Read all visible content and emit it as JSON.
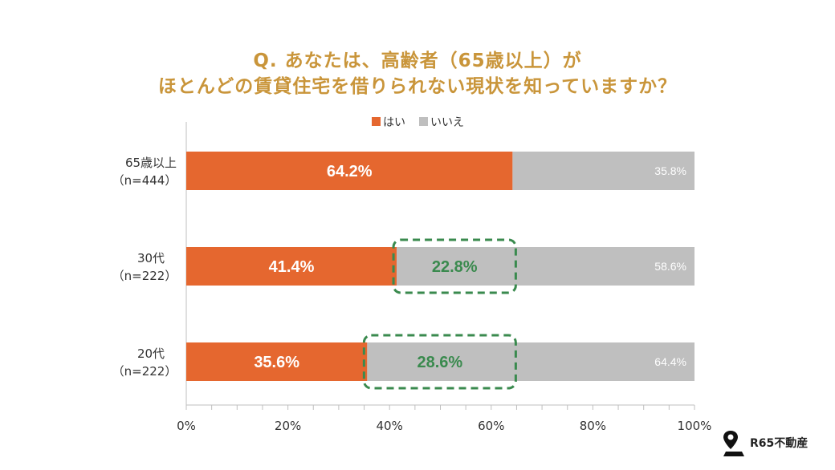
{
  "title": [
    "Q. あなたは、高齢者（65歳以上）が",
    "ほとんどの賃貸住宅を借りられない現状を知っていますか？"
  ],
  "brand": {
    "name": "R65不動産",
    "icon": "map-pin-icon"
  },
  "colors": {
    "yes": "#e5672f",
    "no": "#bfbfbf",
    "highlight": "#3a8a4e",
    "title": "#c9953a",
    "axis": "#bfbfbf"
  },
  "chart_data": {
    "type": "bar",
    "orientation": "horizontal",
    "stacked": true,
    "categories": [
      {
        "label_line1": "65歳以上",
        "label_line2": "（n=444）"
      },
      {
        "label_line1": "30代",
        "label_line2": "（n=222）"
      },
      {
        "label_line1": "20代",
        "label_line2": "（n=222）"
      }
    ],
    "series": [
      {
        "name": "はい",
        "values": [
          64.2,
          41.4,
          35.6
        ],
        "labels": [
          "64.2%",
          "41.4%",
          "35.6%"
        ]
      },
      {
        "name": "いいえ",
        "values": [
          35.8,
          58.6,
          64.4
        ],
        "labels": [
          "35.8%",
          "58.6%",
          "64.4%"
        ]
      }
    ],
    "highlights": [
      null,
      {
        "from": 41.4,
        "to": 64.2,
        "value": 22.8,
        "label": "22.8%"
      },
      {
        "from": 35.6,
        "to": 64.2,
        "value": 28.6,
        "label": "28.6%"
      }
    ],
    "xlim": [
      0,
      100
    ],
    "xticks": [
      "0%",
      "20%",
      "40%",
      "60%",
      "80%",
      "100%"
    ],
    "legend_position": "top-center",
    "grid": false
  }
}
